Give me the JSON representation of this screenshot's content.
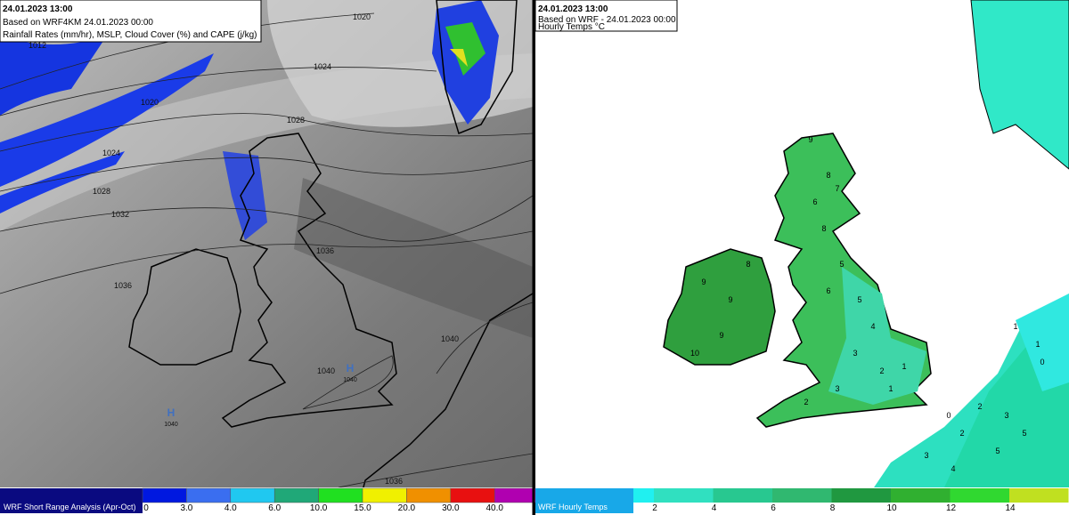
{
  "left_panel": {
    "header": {
      "time": "24.01.2023 13:00",
      "source": "Based on WRF4KM 24.01.2023 00:00",
      "fields": "Rainfall Rates (mm/hr), MSLP, Cloud Cover (%) and CAPE (j/kg)"
    },
    "isobar_labels": [
      "1020",
      "1024",
      "1020",
      "1024",
      "1028",
      "1032",
      "1036",
      "1036",
      "1040",
      "1040",
      "1036",
      "1012",
      "1028"
    ],
    "pressure_centres": [
      {
        "symbol": "H",
        "value": "1040"
      },
      {
        "symbol": "H",
        "value": "1040"
      }
    ],
    "legend": {
      "title": "WRF Short Range Analysis (Apr-Oct)",
      "labels": [
        "0",
        "3.0",
        "4.0",
        "6.0",
        "10.0",
        "15.0",
        "20.0",
        "30.0",
        "40.0"
      ]
    }
  },
  "right_panel": {
    "header": {
      "time": "24.01.2023 13:00",
      "source": "Based on WRF - 24.01.2023 00:00",
      "fields": "Hourly Temps °C"
    },
    "temperature_labels": [
      "9",
      "8",
      "6",
      "7",
      "8",
      "5",
      "6",
      "5",
      "4",
      "3",
      "2",
      "1",
      "9",
      "9",
      "8",
      "10",
      "9",
      "3",
      "2",
      "1",
      "0",
      "2",
      "3",
      "4",
      "5",
      "2",
      "3",
      "5",
      "1",
      "1",
      "0"
    ],
    "legend": {
      "title": "WRF Hourly Temps",
      "labels": [
        "2",
        "4",
        "6",
        "8",
        "10",
        "12",
        "14"
      ]
    }
  }
}
